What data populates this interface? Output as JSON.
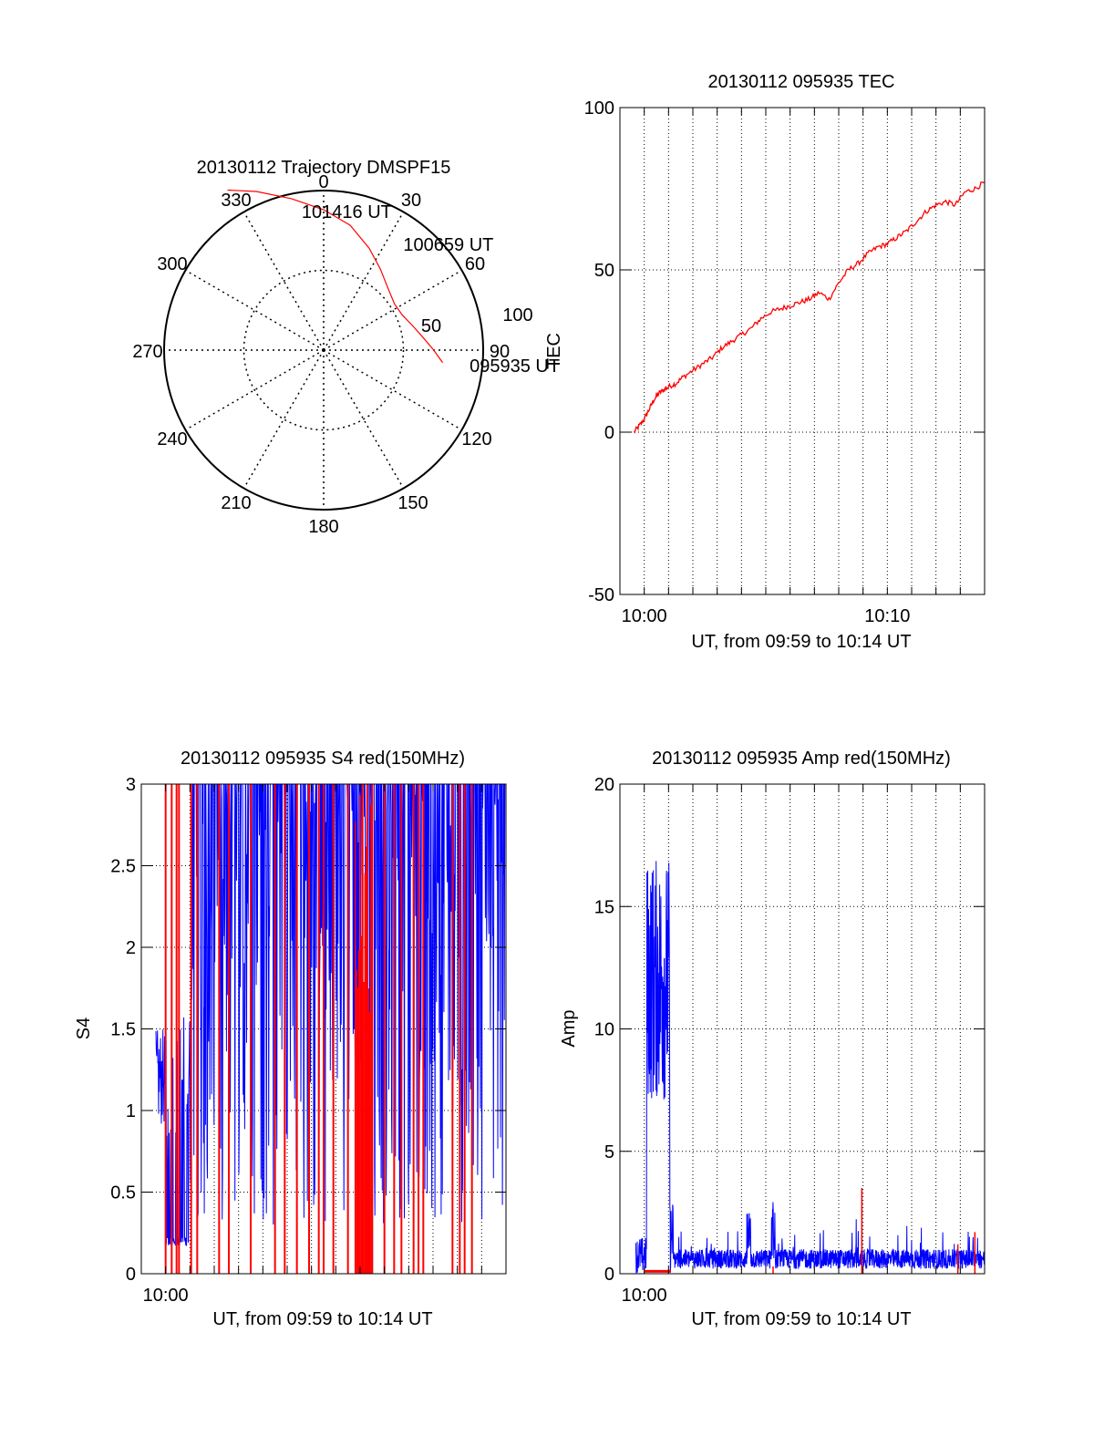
{
  "chart_data": [
    {
      "id": "trajectory",
      "type": "polar",
      "title": "20130112 Trajectory DMSPF15",
      "azimuth_labels": [
        "0",
        "30",
        "60",
        "90",
        "120",
        "150",
        "180",
        "210",
        "240",
        "270",
        "300",
        "330"
      ],
      "radial_labels": [
        "50",
        "100"
      ],
      "grid": true,
      "track": {
        "color": "#ff0000",
        "points": [
          {
            "az": 96,
            "r": 75
          },
          {
            "az": 90,
            "r": 69
          },
          {
            "az": 83,
            "r": 63
          },
          {
            "az": 75,
            "r": 58
          },
          {
            "az": 66,
            "r": 54
          },
          {
            "az": 57,
            "r": 53
          },
          {
            "az": 46,
            "r": 56
          },
          {
            "az": 35,
            "r": 62
          },
          {
            "az": 24,
            "r": 70
          },
          {
            "az": 12,
            "r": 80
          },
          {
            "az": 0,
            "r": 88
          },
          {
            "az": -12,
            "r": 97
          },
          {
            "az": -23,
            "r": 108
          },
          {
            "az": -31,
            "r": 117
          }
        ]
      },
      "annotations": [
        {
          "text": "101416 UT",
          "az": -9,
          "r": 88
        },
        {
          "text": "100659 UT",
          "az": 37,
          "r": 83
        },
        {
          "text": "095935 UT",
          "az": 96,
          "r": 92
        }
      ]
    },
    {
      "id": "tec",
      "type": "line",
      "title": "20130112 095935 TEC",
      "ylabel": "TEC",
      "xlabel": "UT, from 09:59 to 10:14 UT",
      "xlim": [
        59.0,
        74.0
      ],
      "ylim": [
        -50,
        100
      ],
      "yticks": [
        -50,
        0,
        50,
        100
      ],
      "xticks": [
        {
          "value": 60,
          "label": "10:00"
        },
        {
          "value": 70,
          "label": "10:10"
        }
      ],
      "minor_grid_x": [
        60,
        61,
        62,
        63,
        64,
        65,
        66,
        67,
        68,
        69,
        70,
        71,
        72,
        73
      ],
      "grid": true,
      "series": [
        {
          "color": "#ff0000",
          "x": [
            59.58,
            59.8,
            60.0,
            60.2,
            60.4,
            60.6,
            60.8,
            61.0,
            61.3,
            61.6,
            62.0,
            62.4,
            62.8,
            63.2,
            63.6,
            64.0,
            64.4,
            64.8,
            65.2,
            65.6,
            66.0,
            66.4,
            66.8,
            67.2,
            67.6,
            68.0,
            68.4,
            68.8,
            69.2,
            69.6,
            70.0,
            70.4,
            70.8,
            71.2,
            71.6,
            72.0,
            72.4,
            72.8,
            73.2,
            73.6,
            74.0
          ],
          "y": [
            0,
            2,
            4,
            7,
            10,
            12,
            13,
            14,
            15,
            17,
            19,
            21,
            23,
            26,
            28,
            30,
            32,
            35,
            37,
            38,
            39,
            40,
            41,
            43,
            41,
            46,
            50,
            52,
            55,
            57,
            58,
            60,
            62,
            65,
            68,
            70,
            71,
            70,
            74,
            75,
            77
          ]
        }
      ]
    },
    {
      "id": "s4",
      "type": "line",
      "title": "20130112 095935 S4 red(150MHz)",
      "ylabel": "S4",
      "xlabel": "UT, from 09:59 to 10:14 UT",
      "xlim": [
        59.0,
        74.0
      ],
      "ylim": [
        0,
        3
      ],
      "yticks": [
        0,
        0.5,
        1,
        1.5,
        2,
        2.5,
        3
      ],
      "ytick_labels": [
        "0",
        "0.5",
        "1",
        "1.5",
        "2",
        "2.5",
        "3"
      ],
      "xticks": [
        {
          "value": 60,
          "label": "10:00"
        }
      ],
      "minor_grid_x": [
        60,
        61,
        62,
        63,
        64,
        65,
        66,
        67,
        68,
        69,
        70,
        71,
        72,
        73
      ],
      "grid": true,
      "series": [
        {
          "name": "",
          "color": "#0000ff",
          "pattern": "noisy_s4_blue"
        },
        {
          "name": "",
          "color": "#ff0000",
          "pattern": "noisy_s4_red"
        }
      ]
    },
    {
      "id": "amp",
      "type": "line",
      "title": "20130112 095935 Amp red(150MHz)",
      "ylabel": "Amp",
      "xlabel": "UT, from 09:59 to 10:14 UT",
      "xlim": [
        59.0,
        74.0
      ],
      "ylim": [
        0,
        20
      ],
      "yticks": [
        0,
        5,
        10,
        15,
        20
      ],
      "xticks": [
        {
          "value": 60,
          "label": "10:00"
        }
      ],
      "minor_grid_x": [
        60,
        61,
        62,
        63,
        64,
        65,
        66,
        67,
        68,
        69,
        70,
        71,
        72,
        73
      ],
      "grid": true,
      "series": [
        {
          "name": "",
          "color": "#0000ff",
          "pattern": "noisy_amp_blue"
        },
        {
          "name": "",
          "color": "#ff0000",
          "pattern": "noisy_amp_red"
        }
      ]
    }
  ]
}
